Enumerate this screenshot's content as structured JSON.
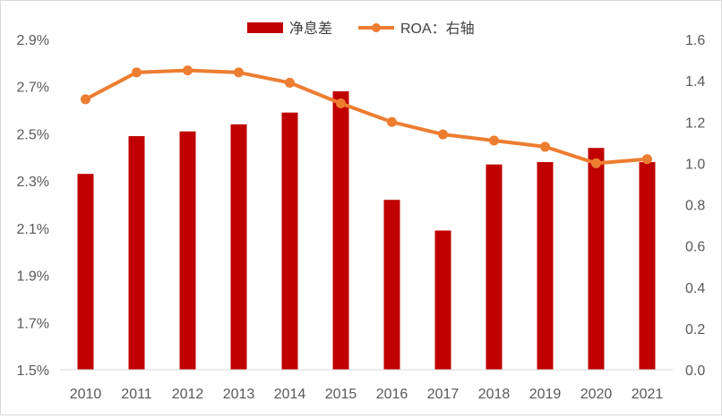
{
  "chart_data": {
    "type": "bar+line",
    "categories": [
      "2010",
      "2011",
      "2012",
      "2013",
      "2014",
      "2015",
      "2016",
      "2017",
      "2018",
      "2019",
      "2020",
      "2021"
    ],
    "series": [
      {
        "name": "净息差",
        "type": "bar",
        "axis": "left",
        "color": "#c00000",
        "values": [
          2.33,
          2.49,
          2.51,
          2.54,
          2.59,
          2.68,
          2.22,
          2.09,
          2.37,
          2.38,
          2.44,
          2.38
        ]
      },
      {
        "name": "ROA：右轴",
        "type": "line",
        "axis": "right",
        "color": "#ed7d31",
        "values": [
          1.31,
          1.44,
          1.45,
          1.44,
          1.39,
          1.29,
          1.2,
          1.14,
          1.11,
          1.08,
          1.0,
          1.02
        ]
      }
    ],
    "y_left": {
      "min": 1.5,
      "max": 2.9,
      "step": 0.2,
      "ticks": [
        "1.5%",
        "1.7%",
        "1.9%",
        "2.1%",
        "2.3%",
        "2.5%",
        "2.7%",
        "2.9%"
      ]
    },
    "y_right": {
      "min": 0.0,
      "max": 1.6,
      "step": 0.2,
      "ticks": [
        "0.0",
        "0.2",
        "0.4",
        "0.6",
        "0.8",
        "1.0",
        "1.2",
        "1.4",
        "1.6"
      ]
    },
    "grid": false,
    "legend": "top-center"
  }
}
